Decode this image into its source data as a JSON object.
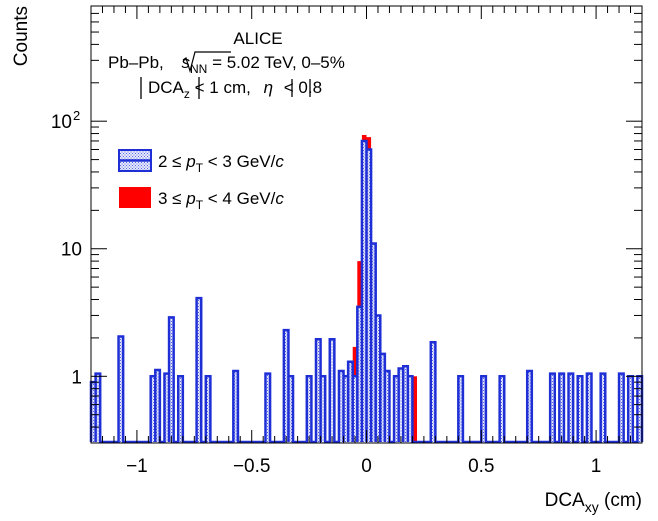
{
  "chart_data": {
    "type": "histogram",
    "title": "",
    "xlabel": "DCA",
    "xlabel_sub": "xy",
    "xlabel_unit": " (cm)",
    "ylabel": "Counts",
    "xlim": [
      -1.2,
      1.2
    ],
    "ylim": [
      0.3,
      800
    ],
    "yscale": "log",
    "bin_width": 0.02,
    "x_ticks": [
      {
        "value": -1,
        "label": "−1"
      },
      {
        "value": -0.5,
        "label": "−0.5"
      },
      {
        "value": 0,
        "label": "0"
      },
      {
        "value": 0.5,
        "label": "0.5"
      },
      {
        "value": 1,
        "label": "1"
      }
    ],
    "y_ticks": [
      {
        "value": 1,
        "label": "1",
        "exp": ""
      },
      {
        "value": 10,
        "label": "10",
        "exp": ""
      },
      {
        "value": 100,
        "label": "10",
        "exp": "2"
      }
    ],
    "annotations": {
      "line1": "ALICE",
      "line2_pre": "Pb–Pb, ",
      "line2_var": "s",
      "line2_sub": "NN",
      "line2_post": " = 5.02 TeV, 0–5%",
      "line3_var": "DCA",
      "line3_sub": "z",
      "line3_post": " < 1 cm, ",
      "line3_eta": "η",
      "line3_post2": " < 0.8"
    },
    "series": [
      {
        "name_pre": "2 ≤ ",
        "name_var": "p",
        "name_sub": "T",
        "name_post": " < 3 GeV/",
        "name_unit": "c",
        "style": "hatched",
        "color": "#1f2fd6",
        "bins": [
          [
            -1.19,
            0.9
          ],
          [
            -1.17,
            1.05
          ],
          [
            -1.07,
            2.05
          ],
          [
            -0.93,
            1.0
          ],
          [
            -0.91,
            1.12
          ],
          [
            -0.87,
            1.05
          ],
          [
            -0.85,
            2.9
          ],
          [
            -0.81,
            1.0
          ],
          [
            -0.73,
            4.1
          ],
          [
            -0.69,
            1.0
          ],
          [
            -0.57,
            1.1
          ],
          [
            -0.43,
            1.05
          ],
          [
            -0.35,
            2.3
          ],
          [
            -0.33,
            1.0
          ],
          [
            -0.25,
            1.0
          ],
          [
            -0.21,
            1.95
          ],
          [
            -0.19,
            1.0
          ],
          [
            -0.15,
            1.95
          ],
          [
            -0.11,
            1.1
          ],
          [
            -0.09,
            1.0
          ],
          [
            -0.07,
            1.3
          ],
          [
            -0.05,
            1.0
          ],
          [
            -0.03,
            3.5
          ],
          [
            -0.01,
            70
          ],
          [
            0.01,
            60
          ],
          [
            0.03,
            11
          ],
          [
            0.05,
            3.0
          ],
          [
            0.07,
            1.5
          ],
          [
            0.09,
            1.1
          ],
          [
            0.13,
            1.0
          ],
          [
            0.15,
            1.15
          ],
          [
            0.17,
            1.2
          ],
          [
            0.19,
            1.0
          ],
          [
            0.29,
            1.85
          ],
          [
            0.41,
            1.0
          ],
          [
            0.51,
            1.0
          ],
          [
            0.59,
            1.0
          ],
          [
            0.71,
            1.1
          ],
          [
            0.81,
            1.05
          ],
          [
            0.85,
            1.05
          ],
          [
            0.89,
            1.05
          ],
          [
            0.93,
            1.0
          ],
          [
            0.97,
            1.05
          ],
          [
            1.03,
            1.05
          ],
          [
            1.11,
            1.05
          ],
          [
            1.15,
            1.0
          ],
          [
            1.19,
            1.0
          ]
        ]
      },
      {
        "name_pre": "3 ≤ ",
        "name_var": "p",
        "name_sub": "T",
        "name_post": " < 4 GeV/",
        "name_unit": "c",
        "style": "filled",
        "color": "#ff0000",
        "bins": [
          [
            -0.85,
            1.1
          ],
          [
            -0.05,
            1.7
          ],
          [
            -0.03,
            8
          ],
          [
            -0.01,
            78
          ],
          [
            0.01,
            75
          ],
          [
            0.03,
            9
          ],
          [
            0.05,
            2.2
          ],
          [
            0.07,
            1.0
          ],
          [
            0.17,
            1.1
          ],
          [
            0.21,
            1.0
          ]
        ]
      }
    ]
  }
}
